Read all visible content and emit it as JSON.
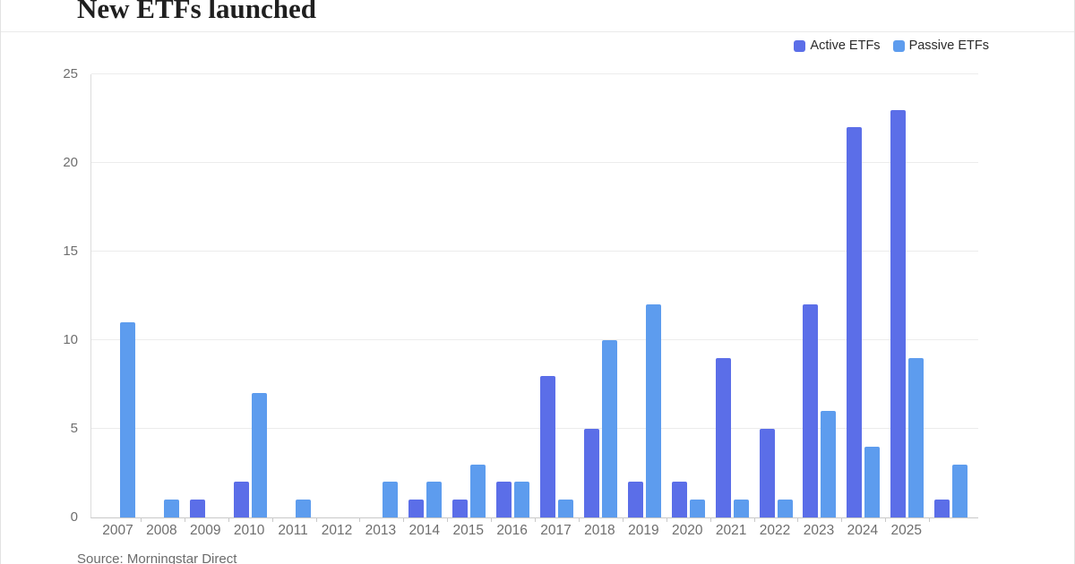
{
  "card": {
    "title": "New ETFs launched",
    "source": "Source: Morningstar Direct"
  },
  "chart_data": {
    "type": "bar",
    "title": "New ETFs launched",
    "categories": [
      "2007",
      "2008",
      "2009",
      "2010",
      "2011",
      "2012",
      "2013",
      "2014",
      "2015",
      "2016",
      "2017",
      "2018",
      "2019",
      "2020",
      "2021",
      "2022",
      "2023",
      "2024",
      "2025",
      ""
    ],
    "series": [
      {
        "name": "Active ETFs",
        "color": "#5b6ee8",
        "values": [
          0,
          0,
          1,
          2,
          0,
          0,
          0,
          1,
          1,
          2,
          8,
          5,
          2,
          2,
          9,
          5,
          12,
          22,
          23,
          1
        ]
      },
      {
        "name": "Passive ETFs",
        "color": "#5d9cee",
        "values": [
          11,
          1,
          0,
          7,
          1,
          0,
          2,
          2,
          3,
          2,
          1,
          10,
          12,
          1,
          1,
          1,
          6,
          4,
          9,
          3
        ]
      }
    ],
    "xlabel": "",
    "ylabel": "",
    "ylim": [
      0,
      25
    ],
    "yticks": [
      0,
      5,
      10,
      15,
      20,
      25
    ],
    "grid": true,
    "legend_position": "top-right"
  },
  "colors": {
    "grid": "#ececec",
    "axis_line": "#c8c8c8",
    "tick_label": "#6e6e6e",
    "card_border": "#e2e2e2"
  }
}
